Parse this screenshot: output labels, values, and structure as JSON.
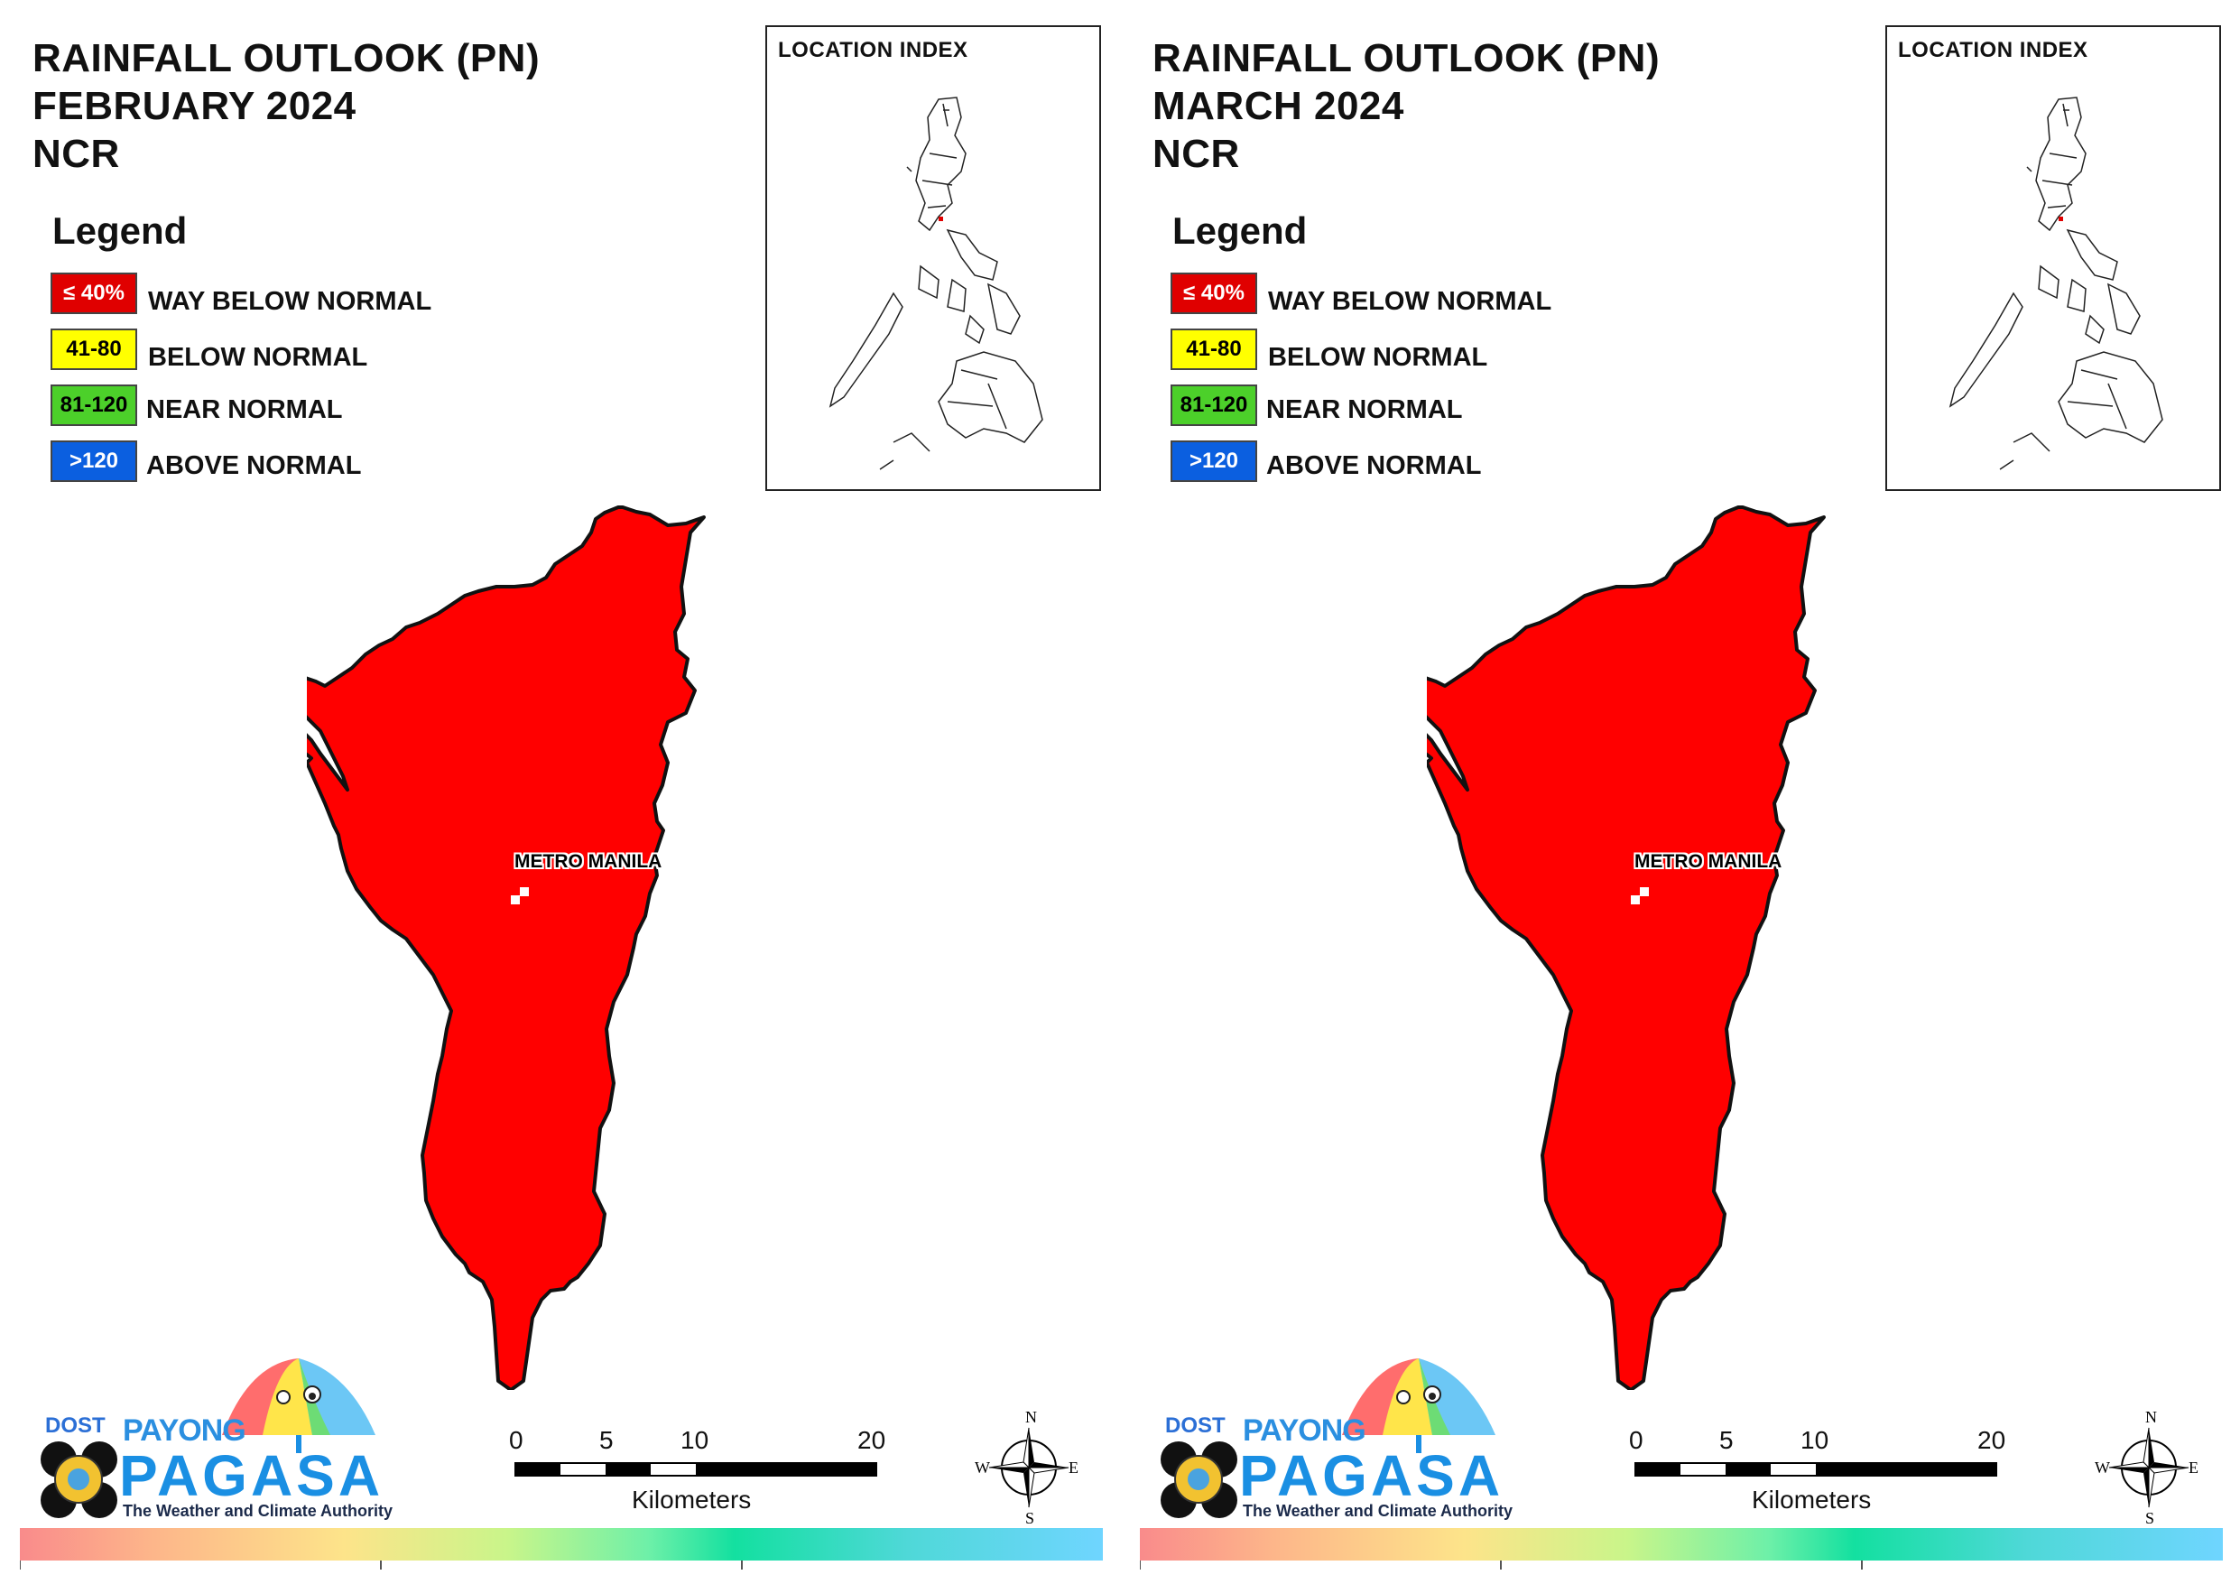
{
  "panels": [
    {
      "title_line1": "RAINFALL OUTLOOK (PN)",
      "title_line2": "FEBRUARY 2024",
      "title_line3": "NCR",
      "legend_title": "Legend",
      "legend": [
        {
          "swatch": "≤ 40%",
          "label": "WAY BELOW NORMAL",
          "color": "#e00000",
          "text_color": "#ffffff"
        },
        {
          "swatch": "41-80",
          "label": "BELOW NORMAL",
          "color": "#ffff00",
          "text_color": "#000000"
        },
        {
          "swatch": "81-120",
          "label": "NEAR NORMAL",
          "color": "#4cd02a",
          "text_color": "#000000"
        },
        {
          "swatch": ">120",
          "label": "ABOVE NORMAL",
          "color": "#0b5fe0",
          "text_color": "#ffffff"
        }
      ],
      "location_index_label": "LOCATION INDEX",
      "place_label": "METRO MANILA",
      "region_category": "WAY BELOW NORMAL",
      "region_color": "#ff0000"
    },
    {
      "title_line1": "RAINFALL OUTLOOK (PN)",
      "title_line2": "MARCH 2024",
      "title_line3": "NCR",
      "legend_title": "Legend",
      "legend": [
        {
          "swatch": "≤ 40%",
          "label": "WAY BELOW NORMAL",
          "color": "#e00000",
          "text_color": "#ffffff"
        },
        {
          "swatch": "41-80",
          "label": "BELOW NORMAL",
          "color": "#ffff00",
          "text_color": "#000000"
        },
        {
          "swatch": "81-120",
          "label": "NEAR NORMAL",
          "color": "#4cd02a",
          "text_color": "#000000"
        },
        {
          "swatch": ">120",
          "label": "ABOVE NORMAL",
          "color": "#0b5fe0",
          "text_color": "#ffffff"
        }
      ],
      "location_index_label": "LOCATION INDEX",
      "place_label": "METRO MANILA",
      "region_category": "WAY BELOW NORMAL",
      "region_color": "#ff0000"
    }
  ],
  "branding": {
    "dost": "DOST",
    "payong": "PAYONG",
    "pagasa": "PAGASA",
    "tagline": "The Weather and Climate Authority"
  },
  "scale": {
    "ticks": [
      "0",
      "5",
      "10",
      "20"
    ],
    "unit": "Kilometers"
  },
  "compass": {
    "n": "N",
    "e": "E",
    "s": "S",
    "w": "W"
  },
  "icons": [
    "umbrella-logo-icon",
    "dost-seal-icon",
    "compass-rose-icon"
  ]
}
